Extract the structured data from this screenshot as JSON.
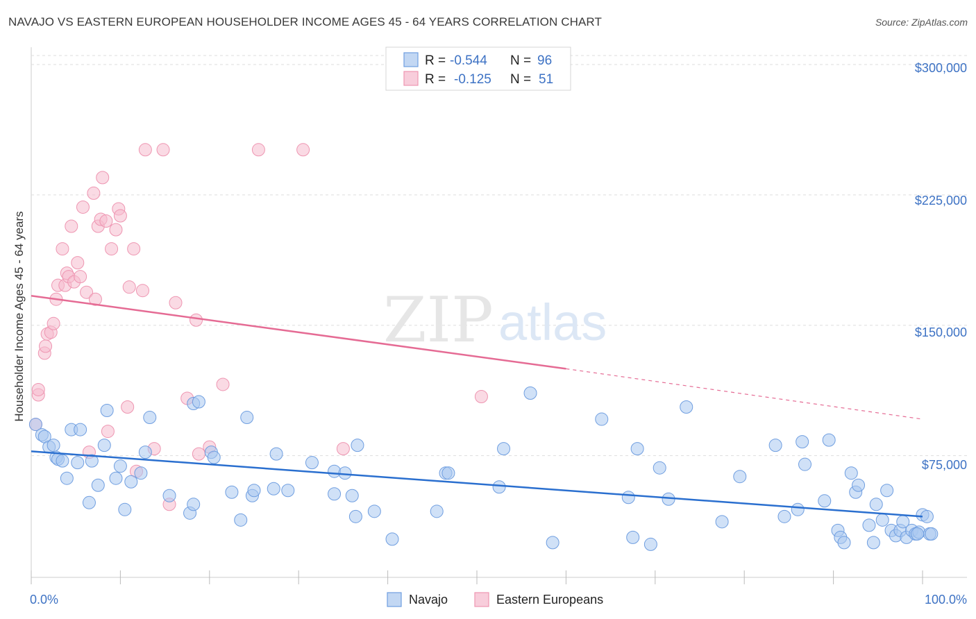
{
  "header": {
    "title": "NAVAJO VS EASTERN EUROPEAN HOUSEHOLDER INCOME AGES 45 - 64 YEARS CORRELATION CHART",
    "source": "Source: ZipAtlas.com"
  },
  "watermark": {
    "zip": "ZIP",
    "atlas": "atlas"
  },
  "legend": {
    "r_label": "R =",
    "n_label": "N =",
    "navajo_r": "-0.544",
    "navajo_n": "96",
    "eastern_r": "-0.125",
    "eastern_n": "51"
  },
  "bottom_legend": {
    "navajo": "Navajo",
    "eastern": "Eastern Europeans"
  },
  "colors": {
    "navajo_fill": "#aac8f0",
    "navajo_stroke": "#6f9ee0",
    "navajo_line": "#2a6fcf",
    "eastern_fill": "#f6bccd",
    "eastern_stroke": "#ee95b1",
    "eastern_line": "#e56b94",
    "tick_label": "#3d72c4",
    "grid": "#dddddd"
  },
  "chart_data": {
    "type": "scatter",
    "title": "NAVAJO VS EASTERN EUROPEAN HOUSEHOLDER INCOME AGES 45 - 64 YEARS CORRELATION CHART",
    "xlabel": "",
    "ylabel": "Householder Income Ages 45 - 64 years",
    "xlim": [
      0,
      100
    ],
    "ylim": [
      5000,
      310000
    ],
    "x_tick_labels": [
      "0.0%",
      "100.0%"
    ],
    "y_ticks": [
      75000,
      150000,
      225000,
      300000
    ],
    "y_tick_labels": [
      "$75,000",
      "$150,000",
      "$225,000",
      "$300,000"
    ],
    "grid": "horizontal dashed",
    "legend_position": "top-center",
    "series": [
      {
        "name": "Navajo",
        "r": -0.544,
        "n": 96,
        "trend": {
          "x0": 0,
          "y0": 77500,
          "x1": 100,
          "y1": 40000
        },
        "points": [
          [
            0.5,
            93000
          ],
          [
            1.2,
            87000
          ],
          [
            1.5,
            86000
          ],
          [
            2.0,
            80000
          ],
          [
            2.5,
            81000
          ],
          [
            2.8,
            74000
          ],
          [
            3.0,
            73000
          ],
          [
            3.5,
            72000
          ],
          [
            4.0,
            62000
          ],
          [
            4.5,
            90000
          ],
          [
            5.5,
            90000
          ],
          [
            5.2,
            71000
          ],
          [
            6.5,
            48000
          ],
          [
            6.8,
            72000
          ],
          [
            7.5,
            58000
          ],
          [
            8.2,
            81000
          ],
          [
            8.5,
            101000
          ],
          [
            9.5,
            62000
          ],
          [
            10.0,
            69000
          ],
          [
            10.5,
            44000
          ],
          [
            11.2,
            60000
          ],
          [
            12.3,
            65000
          ],
          [
            12.8,
            77000
          ],
          [
            13.3,
            97000
          ],
          [
            15.5,
            52000
          ],
          [
            17.8,
            42000
          ],
          [
            18.2,
            105000
          ],
          [
            18.8,
            106000
          ],
          [
            18.2,
            47000
          ],
          [
            20.2,
            77000
          ],
          [
            20.5,
            74000
          ],
          [
            22.5,
            54000
          ],
          [
            23.5,
            38000
          ],
          [
            24.2,
            97000
          ],
          [
            24.8,
            52000
          ],
          [
            25.0,
            55000
          ],
          [
            27.2,
            56000
          ],
          [
            27.5,
            76000
          ],
          [
            28.8,
            55000
          ],
          [
            31.5,
            71000
          ],
          [
            34.0,
            53000
          ],
          [
            34.0,
            66000
          ],
          [
            35.2,
            65000
          ],
          [
            36.0,
            52000
          ],
          [
            36.4,
            40000
          ],
          [
            36.6,
            81000
          ],
          [
            38.5,
            43000
          ],
          [
            40.5,
            27000
          ],
          [
            45.5,
            43000
          ],
          [
            46.5,
            65000
          ],
          [
            46.8,
            65000
          ],
          [
            52.5,
            57000
          ],
          [
            53.0,
            79000
          ],
          [
            56.0,
            111000
          ],
          [
            58.5,
            25000
          ],
          [
            64.0,
            96000
          ],
          [
            67.0,
            51000
          ],
          [
            67.5,
            28000
          ],
          [
            68.0,
            79000
          ],
          [
            69.5,
            24000
          ],
          [
            70.5,
            68000
          ],
          [
            71.5,
            50000
          ],
          [
            73.5,
            103000
          ],
          [
            77.5,
            37000
          ],
          [
            79.5,
            63000
          ],
          [
            83.5,
            81000
          ],
          [
            84.5,
            40000
          ],
          [
            86.0,
            44000
          ],
          [
            86.5,
            83000
          ],
          [
            86.8,
            70000
          ],
          [
            89.5,
            84000
          ],
          [
            89.0,
            49000
          ],
          [
            90.5,
            32000
          ],
          [
            90.8,
            28000
          ],
          [
            91.2,
            25000
          ],
          [
            92.0,
            65000
          ],
          [
            92.5,
            54000
          ],
          [
            92.8,
            58000
          ],
          [
            94.0,
            35000
          ],
          [
            94.5,
            25000
          ],
          [
            94.8,
            47000
          ],
          [
            95.5,
            38000
          ],
          [
            96.0,
            55000
          ],
          [
            96.5,
            32000
          ],
          [
            97.0,
            29000
          ],
          [
            97.5,
            32000
          ],
          [
            97.8,
            37000
          ],
          [
            98.2,
            28000
          ],
          [
            98.8,
            32000
          ],
          [
            99.2,
            30000
          ],
          [
            99.6,
            31000
          ],
          [
            99.4,
            30000
          ],
          [
            100.0,
            41000
          ],
          [
            100.5,
            40000
          ],
          [
            100.8,
            30000
          ],
          [
            101.0,
            30000
          ]
        ]
      },
      {
        "name": "Eastern Europeans",
        "r": -0.125,
        "n": 51,
        "trend": {
          "x0": 0,
          "y0": 167000,
          "x1": 60,
          "y1": 125000
        },
        "trend_dashed": {
          "x0": 60,
          "y0": 125000,
          "x1": 100,
          "y1": 96000
        },
        "points": [
          [
            0.5,
            93000
          ],
          [
            0.8,
            110000
          ],
          [
            0.8,
            113000
          ],
          [
            1.5,
            134000
          ],
          [
            1.6,
            138000
          ],
          [
            1.8,
            145000
          ],
          [
            2.2,
            146000
          ],
          [
            2.5,
            151000
          ],
          [
            2.8,
            165000
          ],
          [
            3.0,
            173000
          ],
          [
            3.5,
            194000
          ],
          [
            3.8,
            173000
          ],
          [
            4.0,
            180000
          ],
          [
            4.2,
            178000
          ],
          [
            4.5,
            207000
          ],
          [
            4.8,
            175000
          ],
          [
            5.2,
            186000
          ],
          [
            5.5,
            178000
          ],
          [
            5.8,
            218000
          ],
          [
            6.2,
            169000
          ],
          [
            6.5,
            77000
          ],
          [
            7.0,
            226000
          ],
          [
            7.2,
            165000
          ],
          [
            7.5,
            207000
          ],
          [
            7.8,
            211000
          ],
          [
            8.0,
            235000
          ],
          [
            8.4,
            210000
          ],
          [
            8.6,
            89000
          ],
          [
            9.0,
            194000
          ],
          [
            9.5,
            205000
          ],
          [
            9.8,
            217000
          ],
          [
            10.0,
            213000
          ],
          [
            10.8,
            103000
          ],
          [
            11.0,
            172000
          ],
          [
            11.5,
            194000
          ],
          [
            11.8,
            66000
          ],
          [
            12.5,
            170000
          ],
          [
            12.8,
            251000
          ],
          [
            13.8,
            79000
          ],
          [
            14.8,
            251000
          ],
          [
            15.5,
            47000
          ],
          [
            16.2,
            163000
          ],
          [
            17.5,
            108000
          ],
          [
            18.5,
            153000
          ],
          [
            18.8,
            76000
          ],
          [
            20.0,
            80000
          ],
          [
            21.5,
            116000
          ],
          [
            25.5,
            251000
          ],
          [
            30.5,
            251000
          ],
          [
            35.0,
            79000
          ],
          [
            50.5,
            109000
          ]
        ]
      }
    ]
  }
}
